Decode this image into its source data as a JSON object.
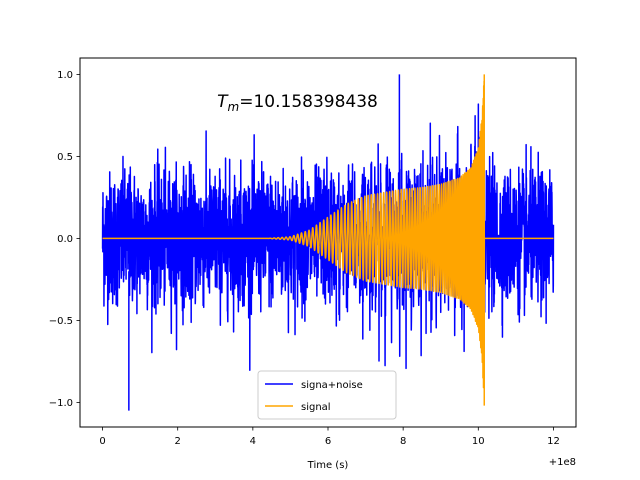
{
  "chart_data": {
    "type": "line",
    "title": "",
    "xlabel": "Time (s)",
    "ylabel": "",
    "xlim": [
      -0.6,
      12.6
    ],
    "ylim": [
      -1.15,
      1.1
    ],
    "x_offset_label": "+1e8",
    "x_ticks": [
      0,
      2,
      4,
      6,
      8,
      10,
      12
    ],
    "x_tick_labels": [
      "0",
      "2",
      "4",
      "6",
      "8",
      "10",
      "12"
    ],
    "y_ticks": [
      -1.0,
      -0.5,
      0.0,
      0.5,
      1.0
    ],
    "y_tick_labels": [
      "−1.0",
      "−0.5",
      "0.0",
      "0.5",
      "1.0"
    ],
    "grid": false,
    "legend_position": "lower-center",
    "annotation": {
      "prefix": "T",
      "subscript": "m",
      "text": "=10.158398438",
      "x": 3.05,
      "y": 0.8
    },
    "series": [
      {
        "name": "signa+noise",
        "color": "#0000ff",
        "description": "noisy oscillation from 0 to 12, amplitude about 0.45 to 0.65, peaks reaching about 1.0 near 7.9 and about -1.05 near 0.7",
        "x_range": [
          0,
          12
        ],
        "typical_amplitude": 0.5,
        "max_peak": [
          7.9,
          1.0
        ],
        "min_peak": [
          0.7,
          -1.05
        ]
      },
      {
        "name": "signal",
        "color": "#ffa500",
        "description": "chirp signal, zero until about 4.7, grows to about 0.3 by 8, rises sharply to 1.0 at 10.158, then zero until 12",
        "envelope": {
          "x": [
            0,
            4.4,
            5.0,
            5.5,
            6.0,
            6.5,
            7.0,
            7.5,
            8.0,
            8.5,
            9.0,
            9.5,
            9.8,
            10.0,
            10.1,
            10.158
          ],
          "y": [
            0.0,
            0.0,
            0.01,
            0.05,
            0.13,
            0.21,
            0.26,
            0.28,
            0.3,
            0.31,
            0.33,
            0.37,
            0.43,
            0.55,
            0.75,
            1.0
          ]
        },
        "merger_time": 10.158398438,
        "x_range": [
          0,
          12
        ]
      }
    ]
  }
}
